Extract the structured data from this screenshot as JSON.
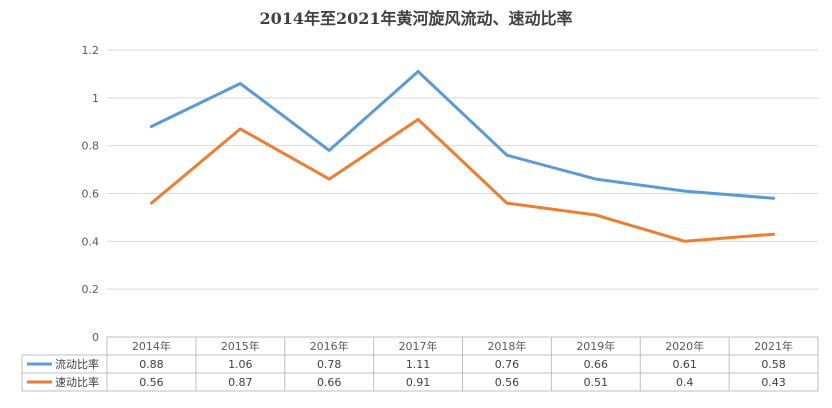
{
  "chart_data": {
    "type": "line",
    "title": "2014年至2021年黄河旋风流动、速动比率",
    "categories": [
      "2014年",
      "2015年",
      "2016年",
      "2017年",
      "2018年",
      "2019年",
      "2020年",
      "2021年"
    ],
    "series": [
      {
        "name": "流动比率",
        "values": [
          0.88,
          1.06,
          0.78,
          1.11,
          0.76,
          0.66,
          0.61,
          0.58
        ],
        "color": "#5b9bd5",
        "labels": [
          "0.88",
          "1.06",
          "0.78",
          "1.11",
          "0.76",
          "0.66",
          "0.61",
          "0.58"
        ]
      },
      {
        "name": "速动比率",
        "values": [
          0.56,
          0.87,
          0.66,
          0.91,
          0.56,
          0.51,
          0.4,
          0.43
        ],
        "color": "#ed7d31",
        "labels": [
          "0.56",
          "0.87",
          "0.66",
          "0.91",
          "0.56",
          "0.51",
          "0.4",
          "0.43"
        ]
      }
    ],
    "ylim": [
      0,
      1.2
    ],
    "yticks": [
      "0",
      "0.2",
      "0.4",
      "0.6",
      "0.8",
      "1",
      "1.2"
    ],
    "grid": true,
    "legend": "data-table"
  }
}
